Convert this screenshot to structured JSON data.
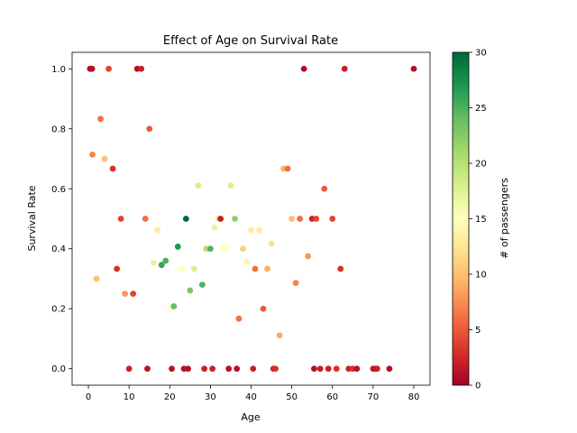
{
  "chart_data": {
    "type": "scatter",
    "title": "Effect of Age on Survival Rate",
    "xlabel": "Age",
    "ylabel": "Survival Rate",
    "xlim": [
      -4,
      84
    ],
    "ylim": [
      -0.055,
      1.055
    ],
    "xticks": [
      0,
      10,
      20,
      30,
      40,
      50,
      60,
      70,
      80
    ],
    "xtick_labels": [
      "0",
      "10",
      "20",
      "30",
      "40",
      "50",
      "60",
      "70",
      "80"
    ],
    "yticks": [
      0.0,
      0.2,
      0.4,
      0.6,
      0.8,
      1.0
    ],
    "ytick_labels": [
      "0.0",
      "0.2",
      "0.4",
      "0.6",
      "0.8",
      "1.0"
    ],
    "colorbar": {
      "label": "# of passengers",
      "range": [
        0,
        30
      ],
      "ticks": [
        0,
        5,
        10,
        15,
        20,
        25,
        30
      ],
      "tick_labels": [
        "0",
        "5",
        "10",
        "15",
        "20",
        "25",
        "30"
      ],
      "colormap": "RdYlGn"
    },
    "points": [
      {
        "x": 0.4,
        "y": 1.0,
        "count": 1
      },
      {
        "x": 0.7,
        "y": 1.0,
        "count": 1
      },
      {
        "x": 0.9,
        "y": 1.0,
        "count": 1
      },
      {
        "x": 1,
        "y": 0.714,
        "count": 7
      },
      {
        "x": 2,
        "y": 0.3,
        "count": 10
      },
      {
        "x": 3,
        "y": 0.833,
        "count": 6
      },
      {
        "x": 4,
        "y": 0.7,
        "count": 10
      },
      {
        "x": 5,
        "y": 1.0,
        "count": 4
      },
      {
        "x": 6,
        "y": 0.667,
        "count": 3
      },
      {
        "x": 7,
        "y": 0.333,
        "count": 3
      },
      {
        "x": 8,
        "y": 0.5,
        "count": 4
      },
      {
        "x": 9,
        "y": 0.25,
        "count": 8
      },
      {
        "x": 10,
        "y": 0.0,
        "count": 2
      },
      {
        "x": 11,
        "y": 0.25,
        "count": 4
      },
      {
        "x": 12,
        "y": 1.0,
        "count": 1
      },
      {
        "x": 13,
        "y": 1.0,
        "count": 2
      },
      {
        "x": 14,
        "y": 0.5,
        "count": 6
      },
      {
        "x": 14.5,
        "y": 0.0,
        "count": 1
      },
      {
        "x": 15,
        "y": 0.8,
        "count": 5
      },
      {
        "x": 16,
        "y": 0.353,
        "count": 17
      },
      {
        "x": 17,
        "y": 0.462,
        "count": 13
      },
      {
        "x": 18,
        "y": 0.346,
        "count": 26
      },
      {
        "x": 19,
        "y": 0.36,
        "count": 25
      },
      {
        "x": 20,
        "y": 0.2,
        "count": 15
      },
      {
        "x": 20.5,
        "y": 0.0,
        "count": 1
      },
      {
        "x": 21,
        "y": 0.208,
        "count": 24
      },
      {
        "x": 22,
        "y": 0.407,
        "count": 27
      },
      {
        "x": 23,
        "y": 0.333,
        "count": 15
      },
      {
        "x": 23.5,
        "y": 0.0,
        "count": 1
      },
      {
        "x": 24,
        "y": 0.5,
        "count": 30
      },
      {
        "x": 24.5,
        "y": 0.0,
        "count": 1
      },
      {
        "x": 25,
        "y": 0.261,
        "count": 23
      },
      {
        "x": 26,
        "y": 0.333,
        "count": 18
      },
      {
        "x": 27,
        "y": 0.611,
        "count": 18
      },
      {
        "x": 28,
        "y": 0.28,
        "count": 25
      },
      {
        "x": 28.5,
        "y": 0.0,
        "count": 2
      },
      {
        "x": 29,
        "y": 0.4,
        "count": 20
      },
      {
        "x": 30,
        "y": 0.4,
        "count": 25
      },
      {
        "x": 30.5,
        "y": 0.0,
        "count": 2
      },
      {
        "x": 31,
        "y": 0.471,
        "count": 17
      },
      {
        "x": 32,
        "y": 0.5,
        "count": 18
      },
      {
        "x": 32.5,
        "y": 0.5,
        "count": 2
      },
      {
        "x": 33,
        "y": 0.4,
        "count": 15
      },
      {
        "x": 34,
        "y": 0.4,
        "count": 15
      },
      {
        "x": 34.5,
        "y": 0.0,
        "count": 1
      },
      {
        "x": 35,
        "y": 0.611,
        "count": 18
      },
      {
        "x": 36,
        "y": 0.5,
        "count": 22
      },
      {
        "x": 36.5,
        "y": 0.0,
        "count": 1
      },
      {
        "x": 37,
        "y": 0.167,
        "count": 6
      },
      {
        "x": 38,
        "y": 0.4,
        "count": 11
      },
      {
        "x": 39,
        "y": 0.357,
        "count": 14
      },
      {
        "x": 40,
        "y": 0.462,
        "count": 13
      },
      {
        "x": 40.5,
        "y": 0.0,
        "count": 2
      },
      {
        "x": 41,
        "y": 0.333,
        "count": 6
      },
      {
        "x": 42,
        "y": 0.462,
        "count": 13
      },
      {
        "x": 43,
        "y": 0.2,
        "count": 5
      },
      {
        "x": 44,
        "y": 0.333,
        "count": 9
      },
      {
        "x": 45,
        "y": 0.417,
        "count": 12
      },
      {
        "x": 45.5,
        "y": 0.0,
        "count": 2
      },
      {
        "x": 46,
        "y": 0.0,
        "count": 3
      },
      {
        "x": 47,
        "y": 0.111,
        "count": 9
      },
      {
        "x": 48,
        "y": 0.667,
        "count": 9
      },
      {
        "x": 49,
        "y": 0.667,
        "count": 6
      },
      {
        "x": 50,
        "y": 0.5,
        "count": 10
      },
      {
        "x": 51,
        "y": 0.286,
        "count": 7
      },
      {
        "x": 52,
        "y": 0.5,
        "count": 6
      },
      {
        "x": 53,
        "y": 1.0,
        "count": 1
      },
      {
        "x": 54,
        "y": 0.375,
        "count": 8
      },
      {
        "x": 55,
        "y": 0.5,
        "count": 2
      },
      {
        "x": 55.5,
        "y": 0.0,
        "count": 1
      },
      {
        "x": 56,
        "y": 0.5,
        "count": 4
      },
      {
        "x": 57,
        "y": 0.0,
        "count": 2
      },
      {
        "x": 58,
        "y": 0.6,
        "count": 5
      },
      {
        "x": 59,
        "y": 0.0,
        "count": 2
      },
      {
        "x": 60,
        "y": 0.5,
        "count": 4
      },
      {
        "x": 61,
        "y": 0.0,
        "count": 3
      },
      {
        "x": 62,
        "y": 0.333,
        "count": 3
      },
      {
        "x": 63,
        "y": 1.0,
        "count": 2
      },
      {
        "x": 64,
        "y": 0.0,
        "count": 2
      },
      {
        "x": 65,
        "y": 0.0,
        "count": 3
      },
      {
        "x": 66,
        "y": 0.0,
        "count": 1
      },
      {
        "x": 70,
        "y": 0.0,
        "count": 2
      },
      {
        "x": 70.5,
        "y": 0.0,
        "count": 1
      },
      {
        "x": 71,
        "y": 0.0,
        "count": 2
      },
      {
        "x": 74,
        "y": 0.0,
        "count": 1
      },
      {
        "x": 80,
        "y": 1.0,
        "count": 1
      }
    ]
  }
}
